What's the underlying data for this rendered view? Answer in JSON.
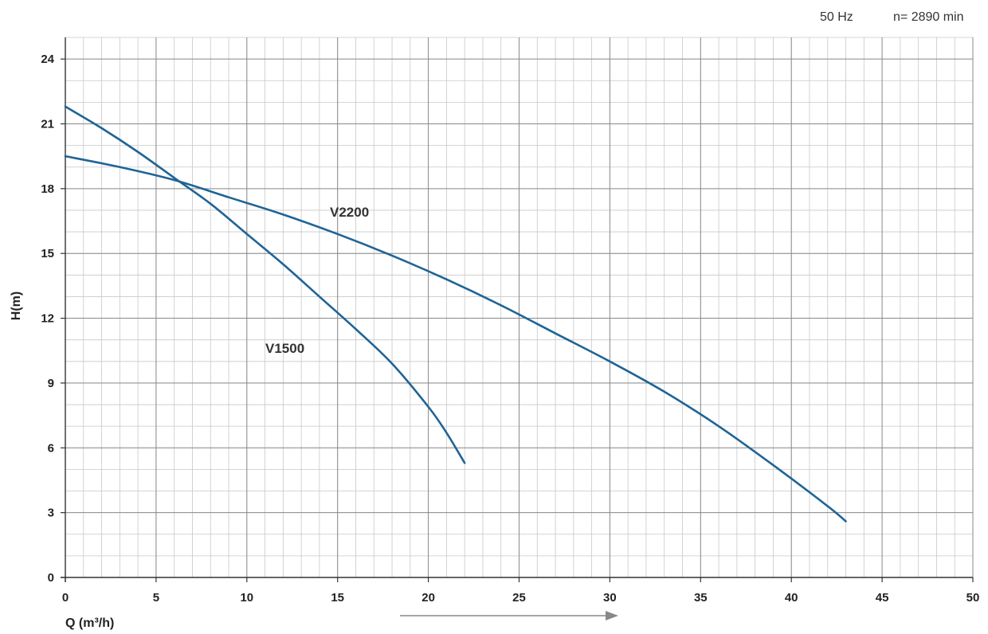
{
  "header": {
    "frequency": "50 Hz",
    "speed": "n= 2890 min"
  },
  "chart_data": {
    "type": "line",
    "xlabel": "Q (m³/h)",
    "ylabel": "H(m)",
    "xlim": [
      0,
      50
    ],
    "ylim": [
      0,
      25
    ],
    "x_ticks": [
      0,
      5,
      10,
      15,
      20,
      25,
      30,
      35,
      40,
      45,
      50
    ],
    "y_ticks": [
      0,
      3,
      6,
      9,
      12,
      15,
      18,
      21,
      24
    ],
    "x_minor_step": 1,
    "y_minor_step": 1,
    "grid": true,
    "line_color": "#1f6496",
    "series": [
      {
        "name": "V1500",
        "x": [
          0,
          2,
          4,
          6,
          8,
          10,
          12,
          14,
          16,
          18,
          20,
          21,
          22
        ],
        "y": [
          21.8,
          20.8,
          19.7,
          18.5,
          17.3,
          15.9,
          14.5,
          13.0,
          11.5,
          9.9,
          7.9,
          6.7,
          5.3
        ]
      },
      {
        "name": "V2200",
        "x": [
          0,
          3,
          6,
          9,
          12,
          15,
          18,
          21,
          24,
          27,
          30,
          33,
          36,
          39,
          42,
          43
        ],
        "y": [
          19.5,
          19.0,
          18.4,
          17.6,
          16.8,
          15.9,
          14.9,
          13.8,
          12.6,
          11.3,
          10.0,
          8.6,
          7.0,
          5.2,
          3.3,
          2.6
        ]
      }
    ]
  }
}
